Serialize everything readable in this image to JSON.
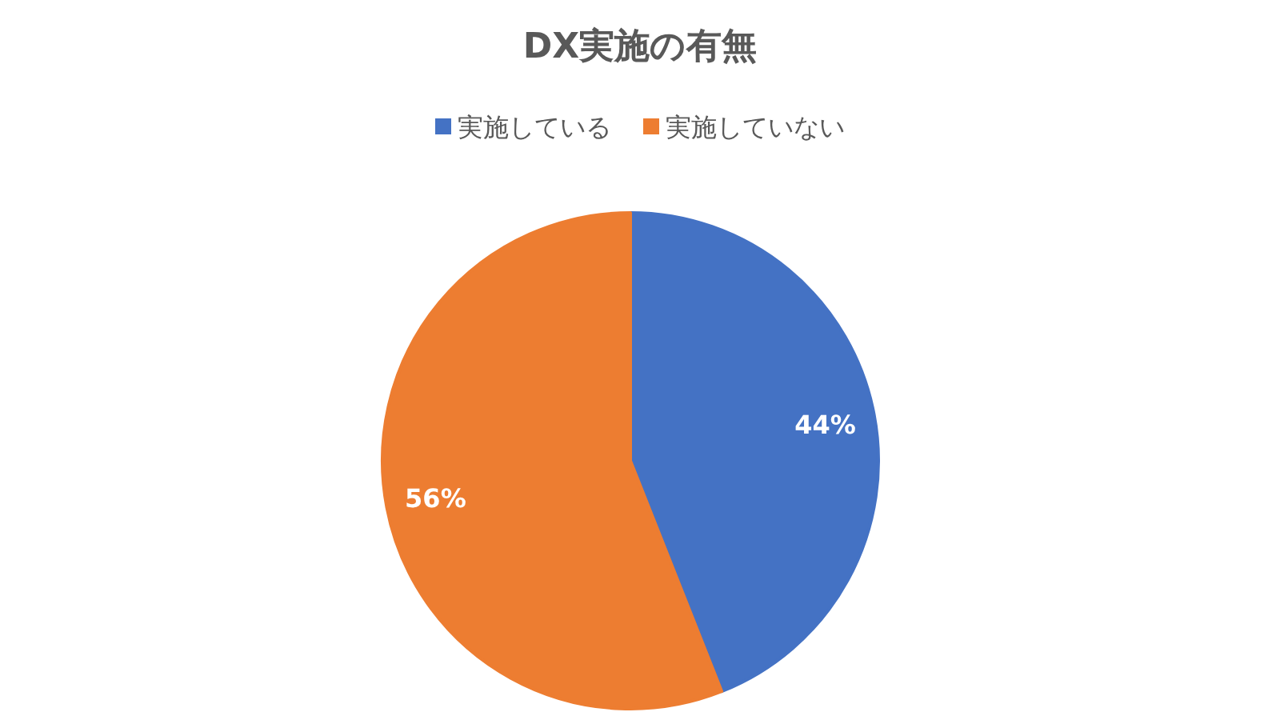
{
  "chart_data": {
    "type": "pie",
    "title": "DX実施の有無",
    "categories": [
      "実施している",
      "実施していない"
    ],
    "values": [
      44,
      56
    ],
    "colors": [
      "#4472c4",
      "#ed7d31"
    ],
    "value_labels": [
      "44%",
      "56%"
    ],
    "legend": "top"
  }
}
